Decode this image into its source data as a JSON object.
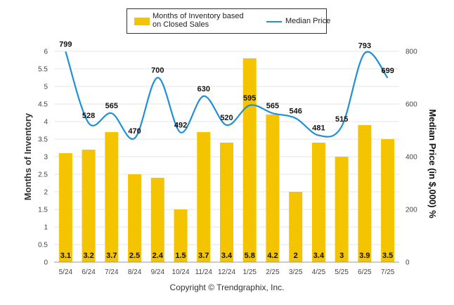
{
  "legend": {
    "bar_label_line1": "Months of Inventory based",
    "bar_label_line2": "on Closed Sales",
    "line_label": "Median Price"
  },
  "copyright": "Copyright © Trendgraphix, Inc.",
  "colors": {
    "bar": "#f5c400",
    "line": "#1f8fd6",
    "grid": "#e6e6e6"
  },
  "chart_data": {
    "type": "bar",
    "categories": [
      "5/24",
      "6/24",
      "7/24",
      "8/24",
      "9/24",
      "10/24",
      "11/24",
      "12/24",
      "1/25",
      "2/25",
      "3/25",
      "4/25",
      "5/25",
      "6/25",
      "7/25"
    ],
    "series": [
      {
        "name": "Months of Inventory based on Closed Sales",
        "type": "bar",
        "axis": "left",
        "values": [
          3.1,
          3.2,
          3.7,
          2.5,
          2.4,
          1.5,
          3.7,
          3.4,
          5.8,
          4.2,
          2,
          3.4,
          3,
          3.9,
          3.5
        ]
      },
      {
        "name": "Median Price",
        "type": "line",
        "axis": "right",
        "values": [
          799,
          528,
          565,
          470,
          700,
          492,
          630,
          520,
          595,
          565,
          546,
          481,
          515,
          793,
          699
        ]
      }
    ],
    "bar_value_labels": [
      "3.1",
      "3.2",
      "3.7",
      "2.5",
      "2.4",
      "1.5",
      "3.7",
      "3.4",
      "5.8",
      "4.2",
      "2",
      "3.4",
      "3",
      "3.9",
      "3.5"
    ],
    "line_value_labels": [
      "799",
      "528",
      "565",
      "470",
      "700",
      "492",
      "630",
      "520",
      "595",
      "565",
      "546",
      "481",
      "515",
      "793",
      "699"
    ],
    "ylabel": "Months of Inventory",
    "ylabel_right": "Median Price (in $,000) %",
    "ylim": [
      0,
      6
    ],
    "ylim_right": [
      0,
      800
    ],
    "yticks": [
      "0",
      "0.5",
      "1",
      "1.5",
      "2",
      "2.5",
      "3",
      "3.5",
      "4",
      "4.5",
      "5",
      "5.5",
      "6"
    ],
    "yticks_right": [
      "0",
      "200",
      "400",
      "600",
      "800"
    ],
    "grid": true,
    "legend_position": "top-center"
  }
}
